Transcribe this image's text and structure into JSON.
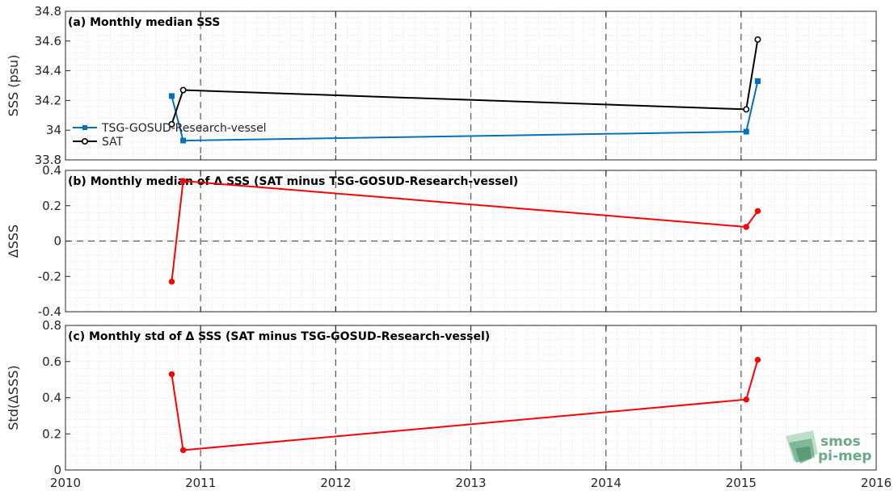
{
  "chart_data": [
    {
      "type": "line",
      "title": "(a) Monthly median SSS",
      "ylabel": "SSS (psu)",
      "xlim": [
        "2010-01-01",
        "2016-01-01"
      ],
      "ylim": [
        33.8,
        34.8
      ],
      "yticks": [
        "33.8",
        "34",
        "34.2",
        "34.4",
        "34.6",
        "34.8"
      ],
      "grid": true,
      "legend_position": "left",
      "series": [
        {
          "name": "TSG-GOSUD-Research-vessel",
          "color": "#0072bd",
          "marker": "square",
          "x": [
            "2010-10-15",
            "2010-11-15",
            "2015-01-15",
            "2015-02-15"
          ],
          "y": [
            34.23,
            33.93,
            33.99,
            34.33
          ]
        },
        {
          "name": "SAT",
          "color": "#000000",
          "marker": "circle",
          "x": [
            "2010-10-15",
            "2010-11-15",
            "2015-01-15",
            "2015-02-15"
          ],
          "y": [
            34.04,
            34.27,
            34.14,
            34.61
          ]
        }
      ]
    },
    {
      "type": "line",
      "title": "(b) Monthly median of Δ SSS (SAT minus TSG-GOSUD-Research-vessel)",
      "ylabel": "ΔSSS",
      "xlim": [
        "2010-01-01",
        "2016-01-01"
      ],
      "ylim": [
        -0.4,
        0.4
      ],
      "yticks": [
        "-0.4",
        "-0.2",
        "0",
        "0.2",
        "0.4"
      ],
      "zero_line": true,
      "grid": true,
      "series": [
        {
          "color": "#ff0000",
          "marker": "circle",
          "x": [
            "2010-10-15",
            "2010-11-15",
            "2015-01-15",
            "2015-02-15"
          ],
          "y": [
            -0.23,
            0.34,
            0.08,
            0.17
          ]
        }
      ]
    },
    {
      "type": "line",
      "title": "(c) Monthly std of Δ SSS (SAT minus TSG-GOSUD-Research-vessel)",
      "ylabel": "Std(ΔSSS)",
      "xlim": [
        "2010-01-01",
        "2016-01-01"
      ],
      "ylim": [
        0,
        0.8
      ],
      "yticks": [
        "0",
        "0.2",
        "0.4",
        "0.6",
        "0.8"
      ],
      "grid": true,
      "series": [
        {
          "color": "#ff0000",
          "marker": "circle",
          "x": [
            "2010-10-15",
            "2010-11-15",
            "2015-01-15",
            "2015-02-15"
          ],
          "y": [
            0.53,
            0.11,
            0.39,
            0.61
          ]
        }
      ]
    }
  ],
  "xticks": [
    "2010",
    "2011",
    "2012",
    "2013",
    "2014",
    "2015",
    "2016"
  ],
  "year_dividers": [
    "2011",
    "2012",
    "2013",
    "2014",
    "2015"
  ],
  "logo": {
    "line1": "smos",
    "line2": "pi-mep",
    "color": "#6aa986"
  }
}
